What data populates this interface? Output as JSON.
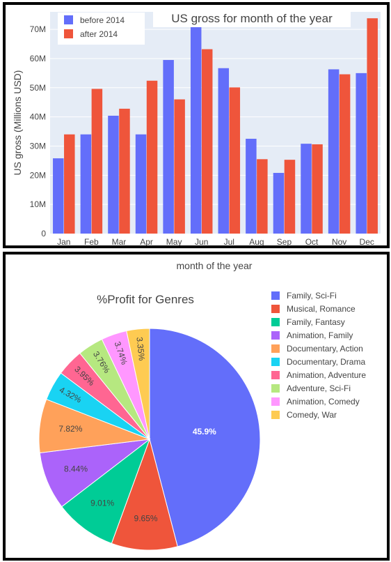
{
  "bar_chart_panel": {
    "chart_data": {
      "type": "bar",
      "title": "US gross for month of the year",
      "ylabel": "US gross (Millions USD)",
      "xlabel": "",
      "categories": [
        "Jan",
        "Feb",
        "Mar",
        "Apr",
        "May",
        "Jun",
        "Jul",
        "Aug",
        "Sep",
        "Oct",
        "Nov",
        "Dec"
      ],
      "series": [
        {
          "name": "before 2014",
          "color": "#636efa",
          "values": [
            25.8,
            34.0,
            40.4,
            34.0,
            59.5,
            71.7,
            56.7,
            32.5,
            20.8,
            30.8,
            56.3,
            55.0
          ]
        },
        {
          "name": "after 2014",
          "color": "#ef553b",
          "values": [
            34.0,
            49.6,
            42.8,
            52.4,
            46.0,
            63.2,
            50.1,
            25.5,
            25.3,
            30.6,
            54.6,
            73.8
          ]
        }
      ],
      "ylim": [
        0,
        76
      ],
      "yticks": [
        0,
        10,
        20,
        30,
        40,
        50,
        60,
        70
      ],
      "ytick_labels": [
        "0",
        "10M",
        "20M",
        "30M",
        "40M",
        "50M",
        "60M",
        "70M"
      ],
      "grid": true,
      "legend_placement": "top-left"
    }
  },
  "pie_chart_panel": {
    "header_text": "month of the year",
    "chart_data": {
      "type": "pie",
      "title": "%Profit for Genres",
      "legend_placement": "right",
      "slices": [
        {
          "label": "Family, Sci-Fi",
          "value": 45.9,
          "display": "45.9%",
          "color": "#636efa"
        },
        {
          "label": "Musical, Romance",
          "value": 9.65,
          "display": "9.65%",
          "color": "#ef553b"
        },
        {
          "label": "Family, Fantasy",
          "value": 9.01,
          "display": "9.01%",
          "color": "#00cc96"
        },
        {
          "label": "Animation, Family",
          "value": 8.44,
          "display": "8.44%",
          "color": "#ab63fa"
        },
        {
          "label": "Documentary, Action",
          "value": 7.82,
          "display": "7.82%",
          "color": "#ffa15a"
        },
        {
          "label": "Documentary, Drama",
          "value": 4.32,
          "display": "4.32%",
          "color": "#19d3f3"
        },
        {
          "label": "Animation, Adventure",
          "value": 3.95,
          "display": "3.95%",
          "color": "#ff6692"
        },
        {
          "label": "Adventure, Sci-Fi",
          "value": 3.76,
          "display": "3.76%",
          "color": "#b6e880"
        },
        {
          "label": "Animation, Comedy",
          "value": 3.74,
          "display": "3.74%",
          "color": "#ff97ff"
        },
        {
          "label": "Comedy, War",
          "value": 3.35,
          "display": "3.35%",
          "color": "#fecb52"
        }
      ]
    }
  }
}
